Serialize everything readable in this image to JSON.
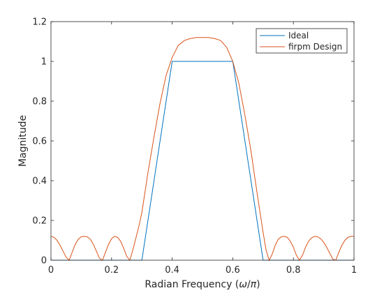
{
  "chart_data": {
    "type": "line",
    "title": "",
    "xlabel_main": "Radian Frequency (",
    "xlabel_omega": "ω",
    "xlabel_slash": "/",
    "xlabel_pi": "π",
    "xlabel_close": ")",
    "ylabel": "Magnitude",
    "xlim": [
      0,
      1
    ],
    "ylim": [
      0,
      1.2
    ],
    "x_ticks": [
      0,
      0.2,
      0.4,
      0.6,
      0.8,
      1
    ],
    "x_tick_labels": [
      "0",
      "0.2",
      "0.4",
      "0.6",
      "0.8",
      "1"
    ],
    "y_ticks": [
      0,
      0.2,
      0.4,
      0.6,
      0.8,
      1,
      1.2
    ],
    "y_tick_labels": [
      "0",
      "0.2",
      "0.4",
      "0.6",
      "0.8",
      "1",
      "1.2"
    ],
    "grid": false,
    "legend_position": "top-right",
    "series": [
      {
        "name": "Ideal",
        "color": "#0072bd",
        "x": [
          0,
          0.3,
          0.4,
          0.6,
          0.7,
          1
        ],
        "y": [
          0,
          0,
          1,
          1,
          0,
          0
        ]
      },
      {
        "name": "firpm Design",
        "color": "#d95319",
        "x": [
          0,
          0.01,
          0.02,
          0.03,
          0.04,
          0.05,
          0.06,
          0.07,
          0.08,
          0.09,
          0.1,
          0.11,
          0.12,
          0.13,
          0.14,
          0.15,
          0.16,
          0.17,
          0.18,
          0.19,
          0.2,
          0.21,
          0.22,
          0.23,
          0.24,
          0.25,
          0.26,
          0.27,
          0.28,
          0.29,
          0.3,
          0.32,
          0.34,
          0.36,
          0.38,
          0.4,
          0.42,
          0.44,
          0.46,
          0.48,
          0.5,
          0.52,
          0.54,
          0.56,
          0.58,
          0.6,
          0.62,
          0.64,
          0.66,
          0.68,
          0.7,
          0.71,
          0.72,
          0.73,
          0.74,
          0.75,
          0.76,
          0.77,
          0.78,
          0.79,
          0.8,
          0.81,
          0.82,
          0.83,
          0.84,
          0.85,
          0.86,
          0.87,
          0.88,
          0.89,
          0.9,
          0.91,
          0.92,
          0.93,
          0.94,
          0.95,
          0.96,
          0.97,
          0.98,
          0.99,
          1
        ],
        "y": [
          0.12,
          0.115,
          0.1,
          0.075,
          0.045,
          0.015,
          0.0,
          0.04,
          0.08,
          0.105,
          0.118,
          0.12,
          0.118,
          0.105,
          0.08,
          0.045,
          0.01,
          0.0,
          0.04,
          0.08,
          0.108,
          0.12,
          0.115,
          0.095,
          0.06,
          0.02,
          0.0,
          0.05,
          0.11,
          0.17,
          0.24,
          0.44,
          0.62,
          0.79,
          0.93,
          1.02,
          1.08,
          1.105,
          1.115,
          1.12,
          1.12,
          1.12,
          1.115,
          1.105,
          1.07,
          1.0,
          0.89,
          0.73,
          0.55,
          0.34,
          0.14,
          0.05,
          0.0,
          0.03,
          0.075,
          0.105,
          0.118,
          0.12,
          0.115,
          0.095,
          0.065,
          0.025,
          0.0,
          0.025,
          0.065,
          0.095,
          0.112,
          0.12,
          0.118,
          0.108,
          0.09,
          0.065,
          0.035,
          0.005,
          0.0,
          0.04,
          0.075,
          0.1,
          0.115,
          0.12,
          0.12
        ]
      }
    ]
  }
}
